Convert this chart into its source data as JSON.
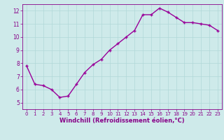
{
  "x": [
    0,
    1,
    2,
    3,
    4,
    5,
    6,
    7,
    8,
    9,
    10,
    11,
    12,
    13,
    14,
    15,
    16,
    17,
    18,
    19,
    20,
    21,
    22,
    23
  ],
  "y": [
    7.8,
    6.4,
    6.3,
    6.0,
    5.4,
    5.5,
    6.4,
    7.3,
    7.9,
    8.3,
    9.0,
    9.5,
    10.0,
    10.5,
    11.7,
    11.7,
    12.2,
    11.9,
    11.5,
    11.1,
    11.1,
    11.0,
    10.9,
    10.5
  ],
  "line_color": "#990099",
  "marker": "+",
  "marker_size": 3.5,
  "marker_linewidth": 1.0,
  "xlabel": "Windchill (Refroidissement éolien,°C)",
  "xlim": [
    -0.5,
    23.5
  ],
  "ylim": [
    4.5,
    12.5
  ],
  "yticks": [
    5,
    6,
    7,
    8,
    9,
    10,
    11,
    12
  ],
  "xticks": [
    0,
    1,
    2,
    3,
    4,
    5,
    6,
    7,
    8,
    9,
    10,
    11,
    12,
    13,
    14,
    15,
    16,
    17,
    18,
    19,
    20,
    21,
    22,
    23
  ],
  "grid_color": "#b0d8d8",
  "background_color": "#ceeaea",
  "figure_bg": "#ceeaea",
  "xlabel_color": "#880088",
  "tick_label_color": "#880088",
  "line_width": 1.0,
  "tick_fontsize": 5.0,
  "xlabel_fontsize": 6.0
}
